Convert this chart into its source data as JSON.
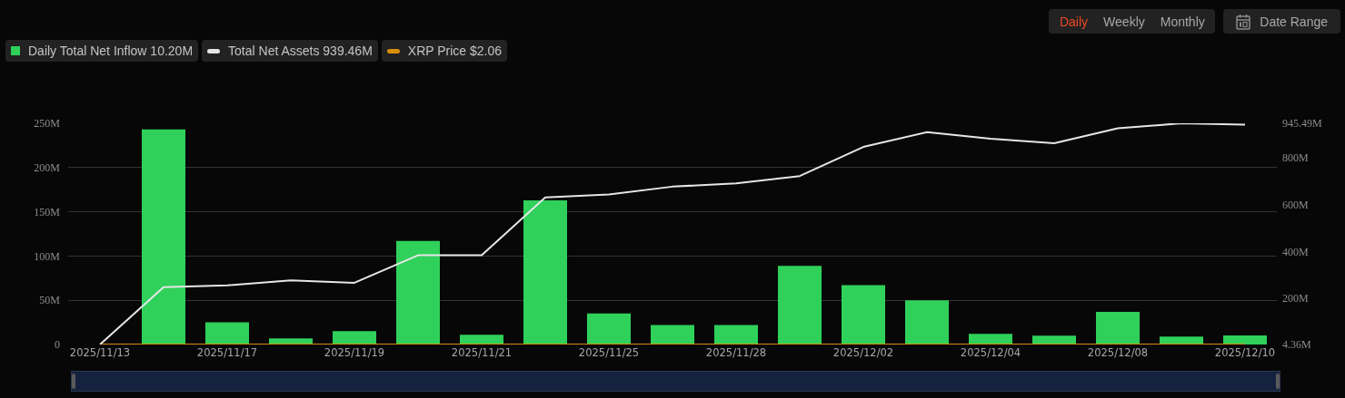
{
  "chart_data": {
    "type": "bar",
    "categories": [
      "2025/11/13",
      null,
      "2025/11/17",
      null,
      "2025/11/19",
      null,
      "2025/11/21",
      null,
      "2025/11/25",
      null,
      "2025/11/28",
      null,
      "2025/12/02",
      null,
      "2025/12/04",
      null,
      "2025/12/08",
      null,
      "2025/12/10"
    ],
    "series": [
      {
        "name": "Daily Total Net Inflow 10.20M",
        "color": "#2fd15a",
        "values": [
          null,
          243,
          25,
          7,
          15,
          117,
          11,
          163,
          35,
          22,
          22,
          89,
          67,
          50,
          12,
          10,
          37,
          9,
          10.2
        ]
      },
      {
        "name": "Total Net Assets 939.46M",
        "type": "line",
        "axis": "y2",
        "color": "#e6e6e6",
        "values": [
          4.36,
          248,
          256,
          277,
          267,
          384,
          384,
          630,
          643,
          676,
          690,
          721,
          845,
          908,
          880,
          861,
          924,
          945.49,
          939.46
        ]
      },
      {
        "name": "XRP Price $2.06",
        "type": "line",
        "color": "#d98e0b",
        "values": [
          0,
          0,
          0,
          0,
          0,
          0,
          0,
          0,
          0,
          0,
          0,
          0,
          0,
          0,
          0,
          0,
          0,
          0,
          0
        ]
      }
    ],
    "ylim": [
      0,
      250
    ],
    "yticks": [
      0,
      {
        "value": 50,
        "label": "50M"
      },
      {
        "value": 100,
        "label": "100M"
      },
      {
        "value": 150,
        "label": "150M"
      },
      {
        "value": 200,
        "label": "200M"
      },
      {
        "value": 250,
        "label": "250M"
      }
    ],
    "y2lim": [
      4.36,
      945.49
    ],
    "y2ticks": [
      {
        "value": 4.36,
        "label": "4.36M"
      },
      {
        "value": 200,
        "label": "200M"
      },
      {
        "value": 400,
        "label": "400M"
      },
      {
        "value": 600,
        "label": "600M"
      },
      {
        "value": 800,
        "label": "800M"
      },
      {
        "value": 945.49,
        "label": "945.49M"
      }
    ],
    "grid": "y",
    "legend": "top left",
    "annotations": [
      "Daily",
      "Weekly",
      "Monthly",
      "Date Range"
    ]
  }
}
